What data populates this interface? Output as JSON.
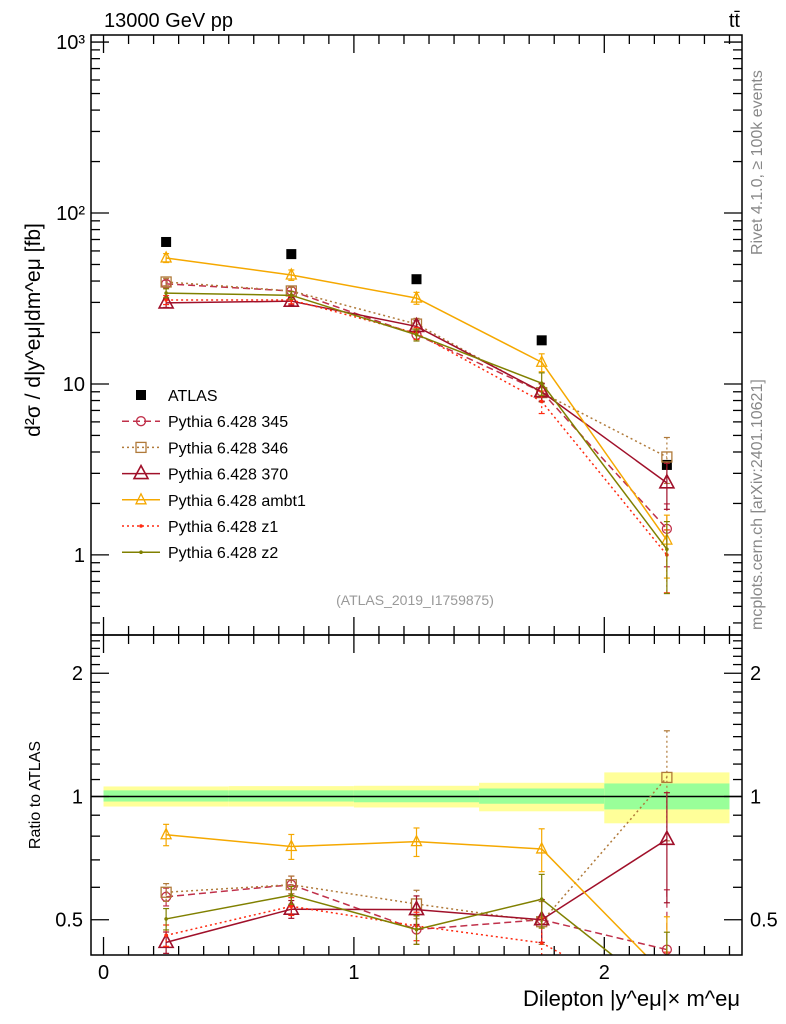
{
  "header": {
    "left": "13000 GeV pp",
    "right": "tt̄"
  },
  "side_text": {
    "rivet": "Rivet 4.1.0, ≥ 100k events",
    "mcplots": "mcplots.cern.ch [arXiv:2401.10621]"
  },
  "chart_data": [
    {
      "type": "line",
      "panel": "main",
      "title": "",
      "ylabel": "d²σ / d|y^eμ|dm^eμ [fb]",
      "yscale": "log",
      "ylim": [
        0.34,
        1100
      ],
      "xlim": [
        -0.05,
        2.55
      ],
      "yticks": [
        1,
        10,
        100,
        1000
      ],
      "yticklabels": [
        "1",
        "10",
        "10²",
        "10³"
      ],
      "reference_label": "(ATLAS_2019_I1759875)",
      "legend_position": "lower-left",
      "x": [
        0.25,
        0.75,
        1.25,
        1.75,
        2.25
      ],
      "series": [
        {
          "name": "ATLAS",
          "color": "#000000",
          "marker": "filled-square",
          "line": "none",
          "values": [
            67.7,
            57.5,
            41.0,
            18.0,
            3.36
          ],
          "relerr": [
            0.03,
            0.03,
            0.03,
            0.05,
            0.12
          ]
        },
        {
          "name": "Pythia 6.428 345",
          "color": "#c0304a",
          "marker": "circle",
          "line": "dashed",
          "values": [
            38.5,
            35.0,
            19.4,
            9.0,
            1.42
          ],
          "relerr": [
            0.05,
            0.05,
            0.08,
            0.12,
            0.4
          ]
        },
        {
          "name": "Pythia 6.428 346",
          "color": "#b07a3a",
          "marker": "square",
          "line": "dotted",
          "values": [
            39.5,
            35.0,
            22.4,
            8.9,
            3.74
          ],
          "relerr": [
            0.05,
            0.05,
            0.08,
            0.12,
            0.3
          ]
        },
        {
          "name": "Pythia 6.428 370",
          "color": "#a0102a",
          "marker": "triangle-large",
          "line": "solid",
          "values": [
            29.8,
            30.5,
            21.7,
            9.0,
            2.64
          ],
          "relerr": [
            0.06,
            0.05,
            0.08,
            0.12,
            0.3
          ]
        },
        {
          "name": "Pythia 6.428 ambt1",
          "color": "#f5a800",
          "marker": "triangle",
          "line": "solid",
          "values": [
            54.6,
            43.4,
            31.8,
            13.4,
            1.22
          ],
          "relerr": [
            0.06,
            0.07,
            0.08,
            0.12,
            0.4
          ]
        },
        {
          "name": "Pythia 6.428 z1",
          "color": "#ff2a10",
          "marker": "dot",
          "line": "dotted",
          "values": [
            31.0,
            31.0,
            19.8,
            7.9,
            1.0
          ],
          "relerr": [
            0.06,
            0.05,
            0.08,
            0.15,
            0.4
          ]
        },
        {
          "name": "Pythia 6.428 z2",
          "color": "#808000",
          "marker": "dot",
          "line": "solid",
          "values": [
            34.0,
            33.0,
            19.4,
            10.1,
            1.08
          ],
          "relerr": [
            0.06,
            0.05,
            0.08,
            0.15,
            0.45
          ]
        }
      ]
    },
    {
      "type": "line",
      "panel": "ratio",
      "ylabel": "Ratio to ATLAS",
      "xlabel": "Dilepton |y^eμ|× m^eμ",
      "yscale": "log",
      "ylim": [
        0.41,
        2.48
      ],
      "xlim": [
        -0.05,
        2.55
      ],
      "yticks": [
        0.5,
        1,
        2
      ],
      "yticklabels": [
        "0.5",
        "1",
        "2"
      ],
      "xticks": [
        0,
        1,
        2
      ],
      "xticklabels": [
        "0",
        "1",
        "2"
      ],
      "bins": [
        [
          0,
          0.5
        ],
        [
          0.5,
          1.0
        ],
        [
          1.0,
          1.5
        ],
        [
          1.5,
          2.0
        ],
        [
          2.0,
          2.5
        ]
      ],
      "band_inner": [
        [
          0.972,
          1.035
        ],
        [
          0.972,
          1.035
        ],
        [
          0.968,
          1.035
        ],
        [
          0.96,
          1.046
        ],
        [
          0.93,
          1.076
        ]
      ],
      "band_outer": [
        [
          0.945,
          1.058
        ],
        [
          0.945,
          1.06
        ],
        [
          0.94,
          1.062
        ],
        [
          0.92,
          1.08
        ],
        [
          0.86,
          1.145
        ]
      ],
      "band_colors": {
        "inner": "#99ff99",
        "outer": "#ffff99"
      }
    }
  ]
}
